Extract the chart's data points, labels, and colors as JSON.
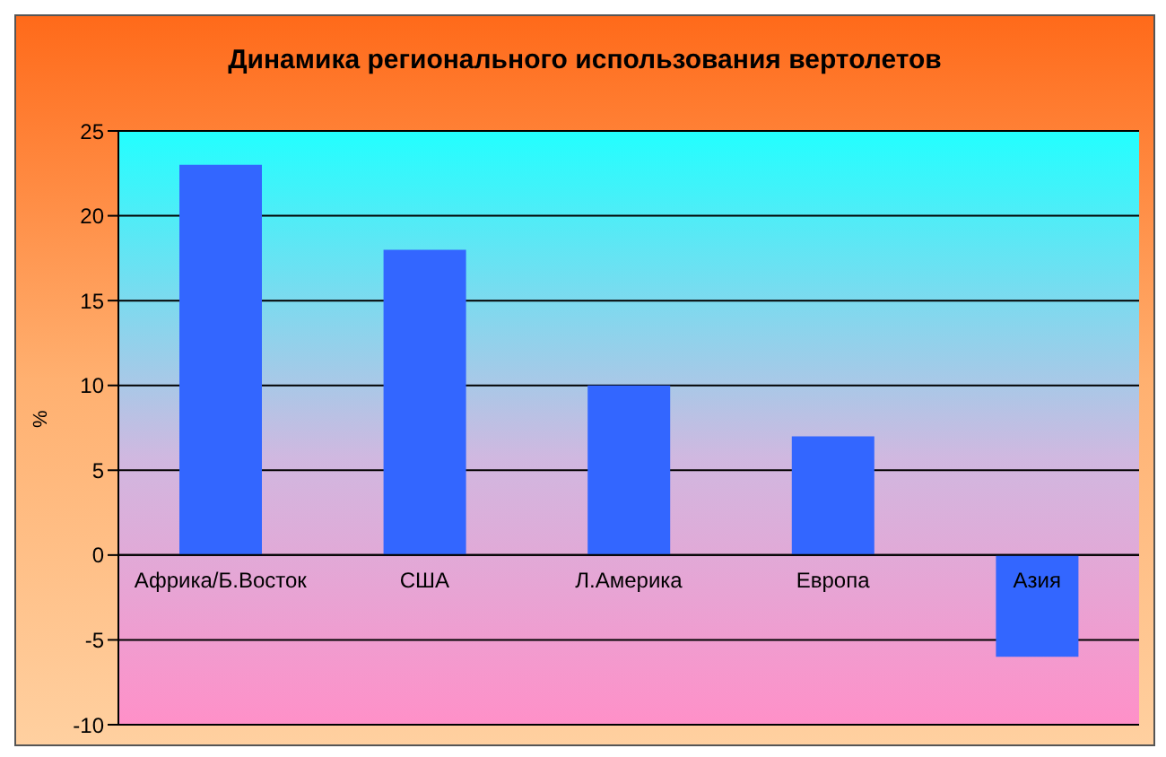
{
  "chart_data": {
    "type": "bar",
    "title": "Динамика регионального использования вертолетов",
    "ylabel": "%",
    "categories": [
      "Африка/Б.Восток",
      "США",
      "Л.Америка",
      "Европа",
      "Азия"
    ],
    "values": [
      23,
      18,
      10,
      7,
      -6
    ],
    "color": "#3366ff",
    "ylim": [
      -10,
      25
    ],
    "yticks": [
      -10,
      -5,
      0,
      5,
      10,
      15,
      20,
      25
    ],
    "grid": "y",
    "legend": false
  }
}
